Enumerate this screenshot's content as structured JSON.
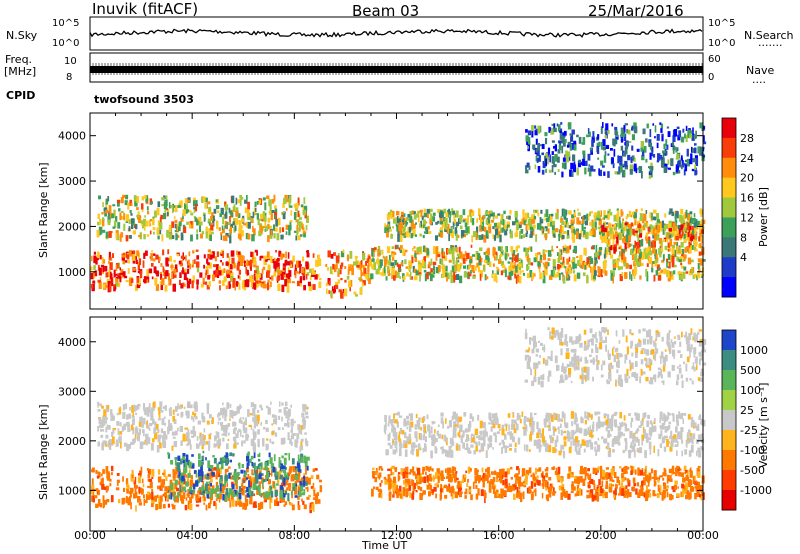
{
  "header": {
    "station": "Inuvik (fitACF)",
    "beam": "Beam 03",
    "date": "25/Mar/2016"
  },
  "top_panels": {
    "nsky_label": "N.Sky",
    "nsky_ticks": [
      "10^5",
      "10^0"
    ],
    "nsearch_label": "N.Search",
    "nsearch_ticks": [
      "10^5",
      "10^0"
    ],
    "freq_label": "Freq.",
    "freq_unit": "[MHz]",
    "freq_ticks": [
      "10",
      "8"
    ],
    "nave_label": "Nave",
    "nave_ticks": [
      "60",
      "0"
    ],
    "cpid_label": "CPID",
    "cpid_value": "twofsound 3503"
  },
  "chart_data": [
    {
      "type": "heatmap",
      "name": "power",
      "ylabel": "Slant Range [km]",
      "ylim": [
        180,
        4500
      ],
      "yticks": [
        "1000",
        "2000",
        "3000",
        "4000"
      ],
      "xlim": [
        0,
        24
      ],
      "colorbar": {
        "label": "Power [dB]",
        "ticks": [
          "28",
          "24",
          "20",
          "16",
          "12",
          "8",
          "4"
        ],
        "colors": [
          "#e8000a",
          "#f83c0a",
          "#ff8c0a",
          "#ffc81e",
          "#a0c83c",
          "#3ca05a",
          "#3c7878",
          "#1e3cc8",
          "#0000ff"
        ]
      },
      "echo_regions": [
        {
          "t": [
            0,
            9
          ],
          "r": [
            700,
            1500
          ],
          "level": 0.85
        },
        {
          "t": [
            0.2,
            8.5
          ],
          "r": [
            1800,
            2700
          ],
          "level": 0.55
        },
        {
          "t": [
            9.2,
            11
          ],
          "r": [
            500,
            1500
          ],
          "level": 0.7
        },
        {
          "t": [
            11,
            24
          ],
          "r": [
            900,
            1600
          ],
          "level": 0.6
        },
        {
          "t": [
            11.5,
            24
          ],
          "r": [
            1800,
            2400
          ],
          "level": 0.5
        },
        {
          "t": [
            20,
            24
          ],
          "r": [
            1500,
            2100
          ],
          "level": 0.7
        },
        {
          "t": [
            17,
            24
          ],
          "r": [
            3200,
            4300
          ],
          "level": 0.2
        }
      ]
    },
    {
      "type": "heatmap",
      "name": "velocity",
      "ylabel": "Slant Range [km]",
      "ylim": [
        180,
        4500
      ],
      "yticks": [
        "1000",
        "2000",
        "3000",
        "4000"
      ],
      "xlim": [
        0,
        24
      ],
      "xticks": [
        "00:00",
        "04:00",
        "08:00",
        "12:00",
        "16:00",
        "20:00",
        "00:00"
      ],
      "xlabel": "Time UT",
      "colorbar": {
        "label": "Velocity [m s⁻¹]",
        "ticks": [
          "1000",
          "500",
          "100",
          "25",
          "-25",
          "-100",
          "-500",
          "-1000"
        ],
        "colors": [
          "#1e46c8",
          "#3c8c82",
          "#5ab45a",
          "#a0d246",
          "#c8c8c8",
          "#ffb41e",
          "#ff7800",
          "#ff3c00",
          "#e60000"
        ]
      },
      "echo_regions": [
        {
          "t": [
            0,
            9
          ],
          "r": [
            700,
            1500
          ],
          "kind": "negative"
        },
        {
          "t": [
            3,
            8.5
          ],
          "r": [
            900,
            1800
          ],
          "kind": "positive"
        },
        {
          "t": [
            0.2,
            8.5
          ],
          "r": [
            1900,
            2800
          ],
          "kind": "ground"
        },
        {
          "t": [
            11,
            24
          ],
          "r": [
            900,
            1500
          ],
          "kind": "negative"
        },
        {
          "t": [
            11.5,
            24
          ],
          "r": [
            1800,
            2600
          ],
          "kind": "ground"
        },
        {
          "t": [
            17,
            24
          ],
          "r": [
            3200,
            4300
          ],
          "kind": "ground"
        }
      ]
    }
  ]
}
